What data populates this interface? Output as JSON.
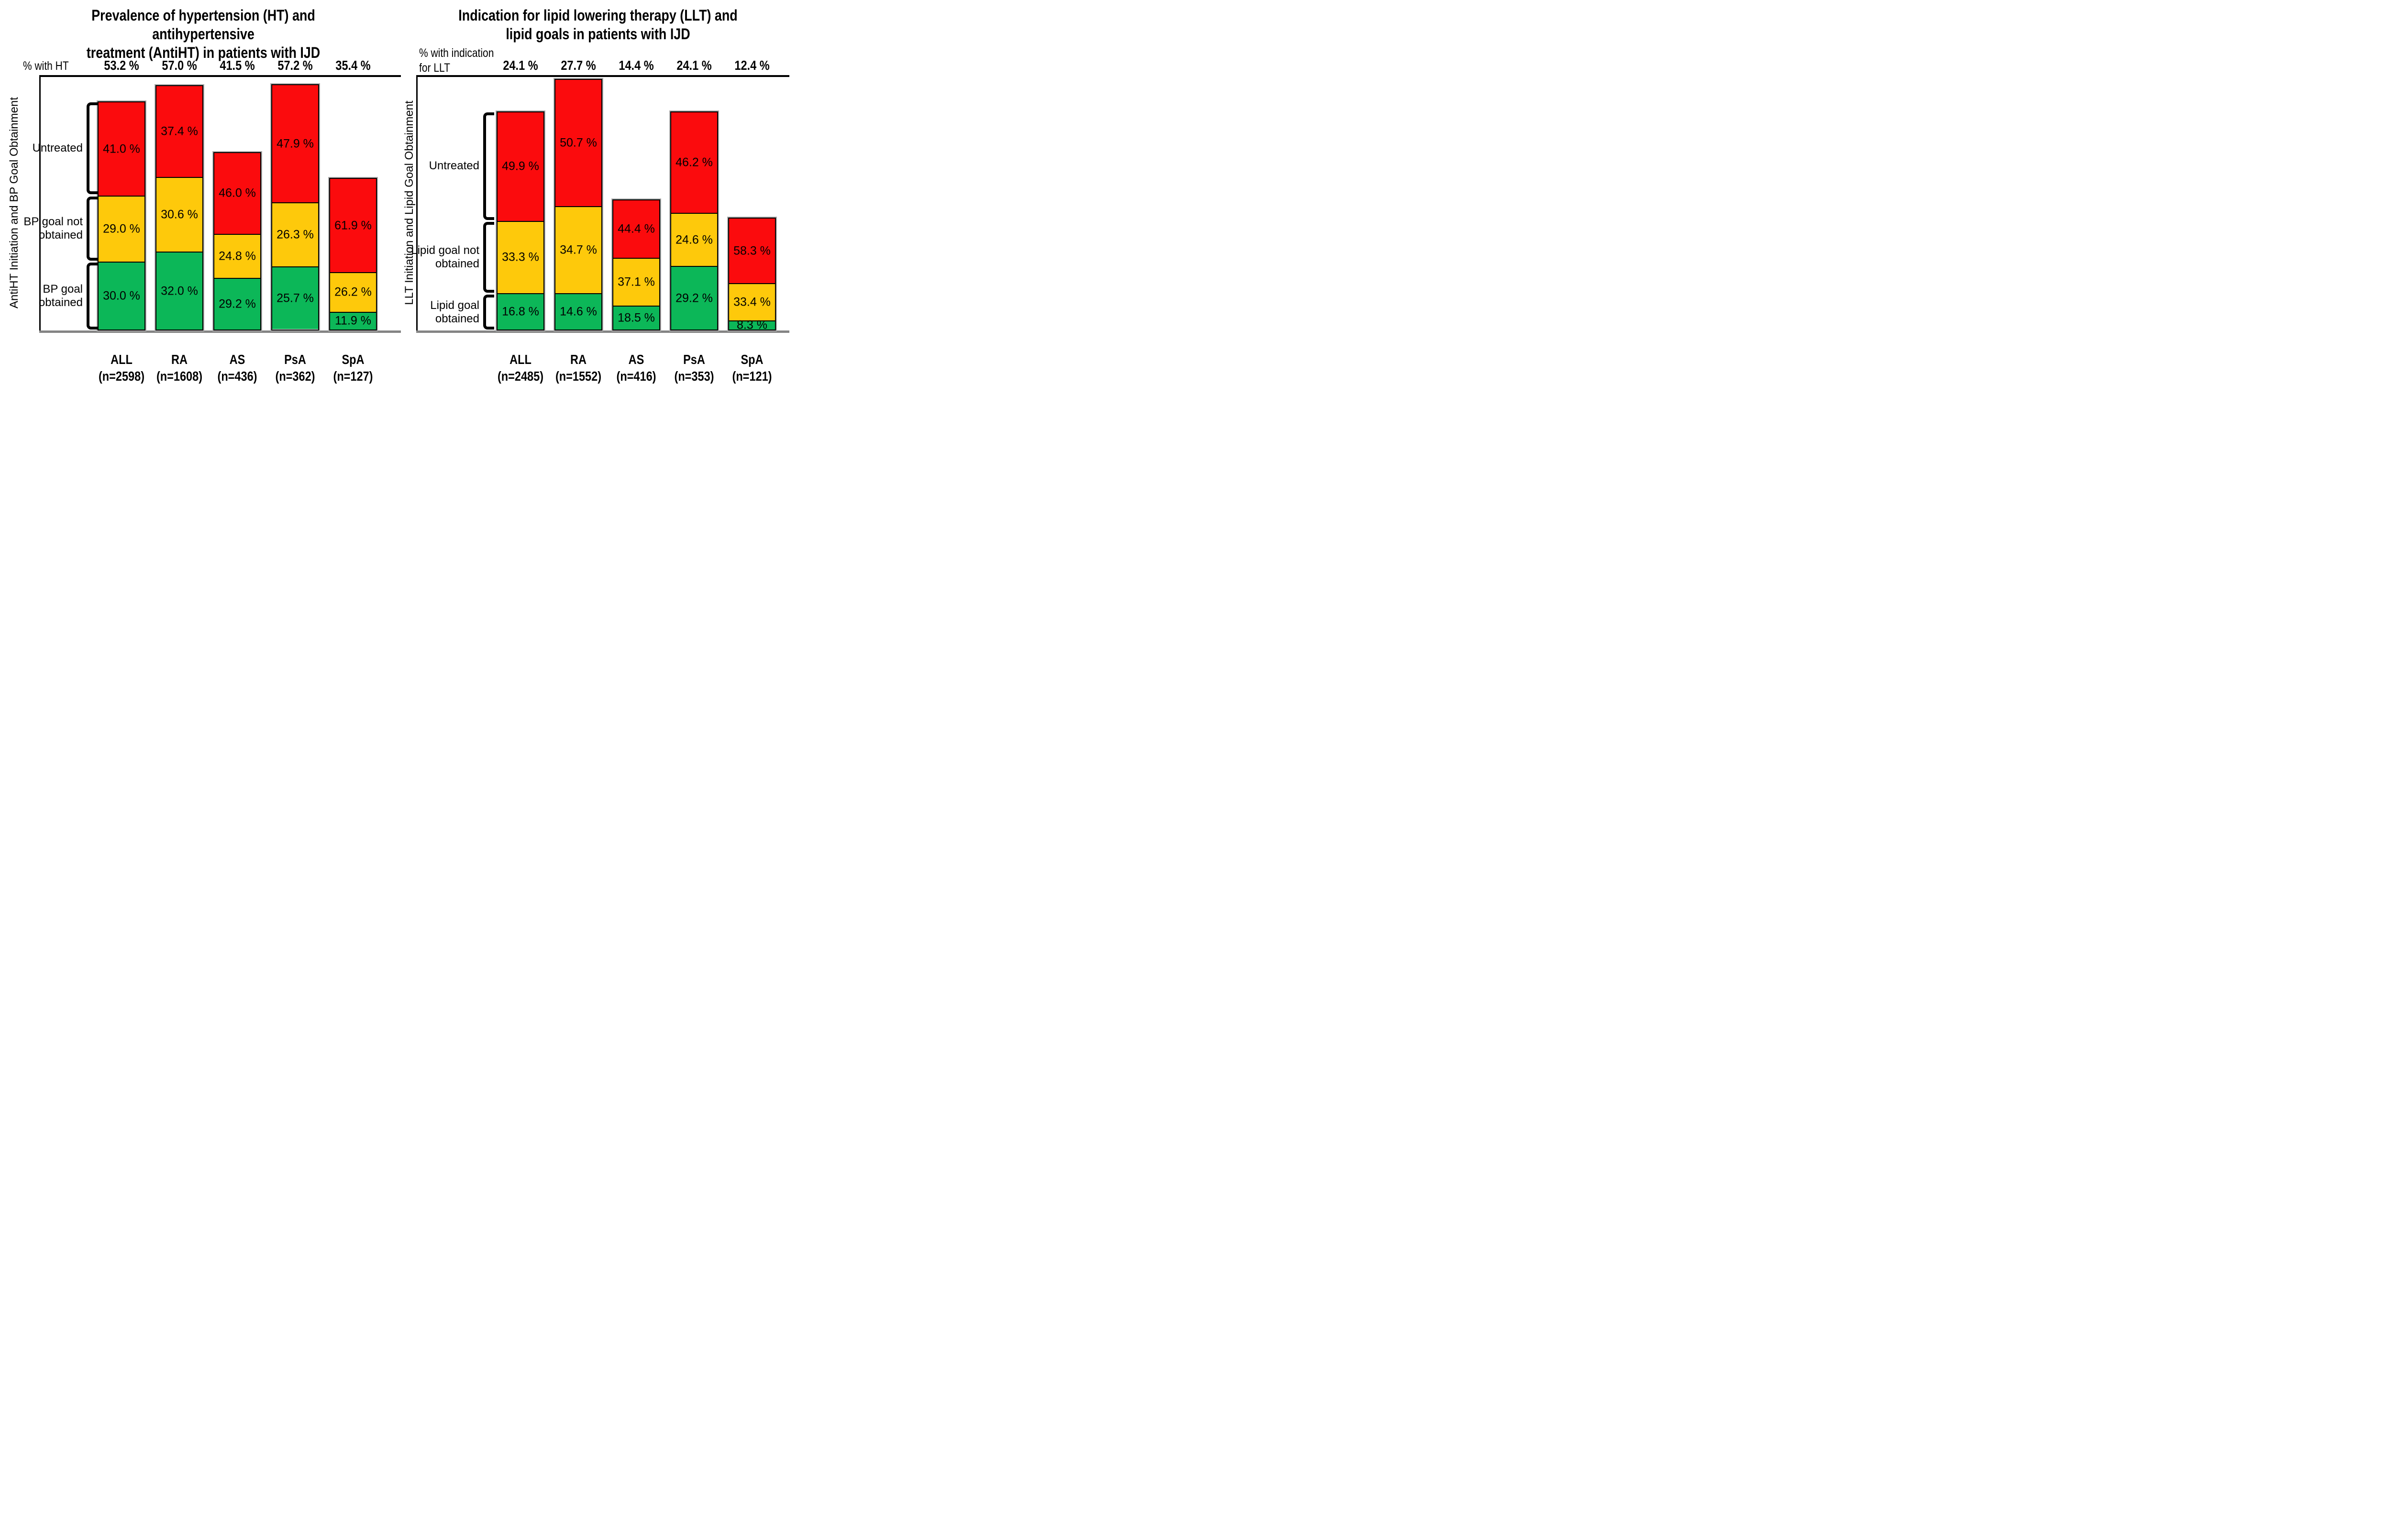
{
  "chart_data": [
    {
      "type": "bar",
      "stacked": true,
      "title": "Prevalence of hypertension (HT) and antihypertensive treatment (AntiHT) in patients with IJD",
      "title_lines": [
        "Prevalence of hypertension (HT) and antihypertensive",
        "treatment (AntiHT) in patients with IJD"
      ],
      "totals_label": "% with HT",
      "totals_label_lines": [
        "% with HT"
      ],
      "totals_percent": [
        53.2,
        57.0,
        41.5,
        57.2,
        35.4
      ],
      "categories": [
        "ALL",
        "RA",
        "AS",
        "PsA",
        "SpA"
      ],
      "category_n": [
        "(n=2598)",
        "(n=1608)",
        "(n=436)",
        "(n=362)",
        "(n=127)"
      ],
      "ylabel": "AntiHT  Initiation and BP Goal Obtainment",
      "value_suffix": " %",
      "series": [
        {
          "name": "BP goal obtained",
          "color": "#0CB758",
          "values": [
            30.0,
            32.0,
            29.2,
            25.7,
            11.9
          ]
        },
        {
          "name": "BP goal not obtained",
          "color": "#FEC90B",
          "values": [
            29.0,
            30.6,
            24.8,
            26.3,
            26.2
          ]
        },
        {
          "name": "Untreated",
          "color": "#FB0B0D",
          "values": [
            41.0,
            37.4,
            46.0,
            47.9,
            61.9
          ]
        }
      ],
      "layout_note": "bar total height proportional to totals_percent; stacked segments are % of each bar; legend drawn as brackets on first bar"
    },
    {
      "type": "bar",
      "stacked": true,
      "title": "Indication for lipid lowering therapy (LLT) and lipid goals in patients with IJD",
      "title_lines": [
        "Indication for lipid lowering therapy (LLT) and",
        "lipid goals in patients with IJD"
      ],
      "totals_label": "% with indication for LLT",
      "totals_label_lines": [
        "% with indication",
        "for LLT"
      ],
      "totals_percent": [
        24.1,
        27.7,
        14.4,
        24.1,
        12.4
      ],
      "categories": [
        "ALL",
        "RA",
        "AS",
        "PsA",
        "SpA"
      ],
      "category_n": [
        "(n=2485)",
        "(n=1552)",
        "(n=416)",
        "(n=353)",
        "(n=121)"
      ],
      "ylabel": "LLT Initiation and Lipid Goal Obtainment",
      "value_suffix": " %",
      "series": [
        {
          "name": "Lipid goal obtained",
          "color": "#0CB758",
          "values": [
            16.8,
            14.6,
            18.5,
            29.2,
            8.3
          ]
        },
        {
          "name": "Lipid goal not obtained",
          "color": "#FEC90B",
          "values": [
            33.3,
            34.7,
            37.1,
            24.6,
            33.4
          ]
        },
        {
          "name": "Untreated",
          "color": "#FB0B0D",
          "values": [
            49.9,
            50.7,
            44.4,
            46.2,
            58.3
          ]
        }
      ],
      "layout_note": "bar total height proportional to totals_percent; stacked segments are % of each bar; legend drawn as brackets on first bar"
    }
  ],
  "colors": {
    "green": "#0CB758",
    "yellow": "#FEC90B",
    "red": "#FB0B0D",
    "axis": "#000000",
    "baseline_gray": "#848484",
    "bar_shadow": "#ABABAB",
    "background": "#FFFFFF"
  }
}
